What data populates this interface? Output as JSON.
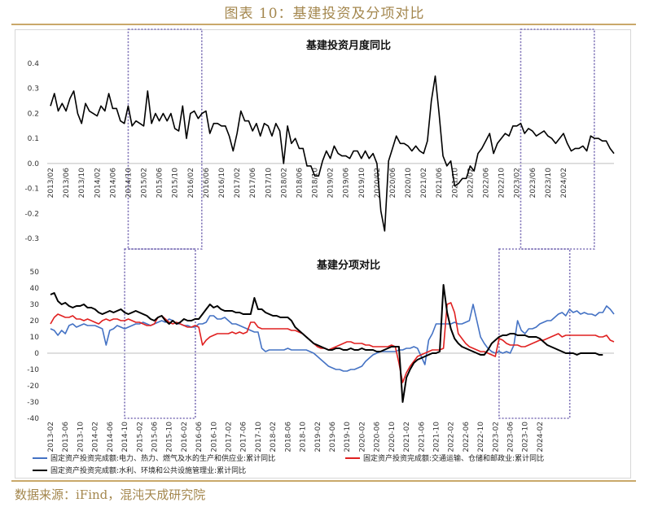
{
  "header": {
    "title": "图表 10：基建投资及分项对比"
  },
  "footer": {
    "source": "数据来源：iFind，混沌天成研究院"
  },
  "colors": {
    "black": "#000000",
    "blue": "#4472c4",
    "red": "#e02020",
    "highlight": "#7b6fb5",
    "gold": "#a4874e"
  },
  "chart_data": [
    {
      "type": "line",
      "title": "基建投资月度同比",
      "ylim": [
        -0.3,
        0.4
      ],
      "yticks": [
        "0.4",
        "0.3",
        "0.2",
        "0.1",
        "0.0",
        "-0.1",
        "-0.2",
        "-0.3"
      ],
      "xticks": [
        "2013/02",
        "2013/06",
        "2013/10",
        "2014/02",
        "2014/06",
        "2014/10",
        "2015/02",
        "2015/06",
        "2015/10",
        "2016/02",
        "2016/06",
        "2016/10",
        "2017/02",
        "2017/06",
        "2017/10",
        "2018/02",
        "2018/06",
        "2018/10",
        "2019/02",
        "2019/06",
        "2019/10",
        "2020/02",
        "2020/06",
        "2020/10",
        "2021/02",
        "2021/06",
        "2021/10",
        "2022/02",
        "2022/06",
        "2022/10",
        "2023/02",
        "2023/06",
        "2023/10",
        "2024/02"
      ],
      "series": [
        {
          "name": "基建投资月度同比",
          "values": [
            0.23,
            0.28,
            0.21,
            0.24,
            0.21,
            0.26,
            0.29,
            0.2,
            0.16,
            0.24,
            0.21,
            0.2,
            0.19,
            0.23,
            0.21,
            0.28,
            0.22,
            0.22,
            0.17,
            0.16,
            0.23,
            0.15,
            0.17,
            0.16,
            0.15,
            0.29,
            0.16,
            0.2,
            0.17,
            0.2,
            0.17,
            0.2,
            0.14,
            0.13,
            0.23,
            0.1,
            0.2,
            0.21,
            0.18,
            0.2,
            0.21,
            0.12,
            0.16,
            0.16,
            0.15,
            0.15,
            0.11,
            0.05,
            0.12,
            0.21,
            0.17,
            0.17,
            0.13,
            0.16,
            0.11,
            0.16,
            0.15,
            0.11,
            0.16,
            0.13,
            0.0,
            0.15,
            0.08,
            0.1,
            0.06,
            0.06,
            -0.01,
            -0.01,
            -0.05,
            -0.05,
            0.01,
            0.05,
            0.02,
            0.07,
            0.04,
            0.03,
            0.03,
            0.02,
            0.05,
            0.05,
            0.02,
            0.05,
            0.02,
            0.04,
            0.0,
            -0.19,
            -0.27,
            0.01,
            0.06,
            0.11,
            0.08,
            0.08,
            0.07,
            0.05,
            0.07,
            0.05,
            0.04,
            0.09,
            0.25,
            0.35,
            0.2,
            0.03,
            -0.01,
            0.01,
            -0.09,
            -0.08,
            -0.06,
            -0.06,
            -0.01,
            -0.03,
            0.04,
            0.06,
            0.09,
            0.12,
            0.04,
            0.08,
            0.1,
            0.12,
            0.11,
            0.15,
            0.15,
            0.16,
            0.12,
            0.14,
            0.13,
            0.11,
            0.12,
            0.13,
            0.11,
            0.1,
            0.08,
            0.1,
            0.12,
            0.08,
            0.05,
            0.06,
            0.06,
            0.07,
            0.05,
            0.11,
            0.1,
            0.1,
            0.09,
            0.09,
            0.06,
            0.04
          ]
        }
      ],
      "highlight_periods": [
        [
          "2014/10",
          "2016/02"
        ],
        [
          "2023/03",
          "2024/07"
        ]
      ]
    },
    {
      "type": "line",
      "title": "基建分项对比",
      "ylim": [
        -40,
        50
      ],
      "yticks": [
        "50",
        "40",
        "30",
        "20",
        "10",
        "0",
        "-10",
        "-20",
        "-30",
        "-40"
      ],
      "xticks": [
        "2013-02",
        "2013-06",
        "2013-10",
        "2014-02",
        "2014-06",
        "2014-10",
        "2015-02",
        "2015-06",
        "2015-10",
        "2016-02",
        "2016-06",
        "2016-10",
        "2017-02",
        "2017-06",
        "2017-10",
        "2018-02",
        "2018-06",
        "2018-10",
        "2019-02",
        "2019-06",
        "2019-10",
        "2020-02",
        "2020-06",
        "2020-10",
        "2021-02",
        "2021-06",
        "2021-10",
        "2022-02",
        "2022-06",
        "2022-10",
        "2023-02",
        "2023-06",
        "2023-10",
        "2024-02"
      ],
      "series": [
        {
          "name": "固定资产投资完成额:电力、热力、燃气及水的生产和供应业:累计同比",
          "values": [
            15,
            14,
            11,
            14,
            12,
            17,
            18,
            16,
            17,
            18,
            17,
            17,
            17,
            16,
            15,
            5,
            14,
            15,
            17,
            16,
            15,
            16,
            17,
            18,
            18,
            19,
            18,
            17,
            18,
            19,
            20,
            19,
            21,
            20,
            18,
            18,
            17,
            17,
            16,
            16,
            18,
            18,
            19,
            23,
            23,
            21,
            21,
            22,
            20,
            18,
            18,
            17,
            16,
            15,
            14,
            13,
            13,
            3,
            1,
            2,
            2,
            2,
            2,
            2,
            3,
            2,
            2,
            2,
            2,
            2,
            1,
            0,
            -2,
            -4,
            -6,
            -8,
            -9,
            -10,
            -10,
            -11,
            -11,
            -10,
            -10,
            -9,
            -8,
            -5,
            -3,
            -1,
            0,
            1,
            1,
            1,
            1,
            1,
            2,
            2,
            3,
            3,
            4,
            3,
            -2,
            -7,
            8,
            12,
            18,
            18,
            18,
            18,
            18,
            19,
            18,
            18,
            19,
            20,
            30,
            20,
            10,
            6,
            3,
            1,
            0,
            1,
            0,
            1,
            0,
            5,
            20,
            14,
            12,
            15,
            15,
            16,
            18,
            19,
            20,
            20,
            22,
            24,
            25,
            23,
            27,
            25,
            26,
            24,
            25,
            24,
            24,
            23,
            25,
            25,
            29,
            27,
            24
          ]
        },
        {
          "name": "固定资产投资完成额:交通运输、仓储和邮政业:累计同比",
          "values": [
            18,
            22,
            24,
            23,
            22,
            22,
            23,
            21,
            21,
            20,
            21,
            20,
            19,
            18,
            20,
            21,
            20,
            21,
            21,
            20,
            20,
            21,
            20,
            19,
            19,
            18,
            17,
            17,
            18,
            22,
            23,
            21,
            19,
            18,
            19,
            18,
            17,
            16,
            16,
            17,
            16,
            5,
            8,
            10,
            11,
            12,
            12,
            12,
            12,
            13,
            12,
            13,
            12,
            13,
            19,
            19,
            16,
            15,
            15,
            15,
            15,
            15,
            15,
            15,
            15,
            14,
            14,
            13,
            12,
            10,
            8,
            6,
            4,
            3,
            3,
            2,
            3,
            4,
            5,
            6,
            7,
            7,
            6,
            6,
            6,
            5,
            5,
            4,
            4,
            4,
            4,
            4,
            5,
            4,
            -6,
            -18,
            -12,
            -8,
            -5,
            -2,
            -1,
            0,
            1,
            2,
            2,
            2,
            3,
            30,
            31,
            25,
            12,
            9,
            6,
            4,
            3,
            2,
            1,
            1,
            0,
            -1,
            -2,
            9,
            8,
            6,
            5,
            5,
            5,
            4,
            4,
            5,
            6,
            7,
            8,
            8,
            9,
            10,
            11,
            12,
            10,
            11,
            11,
            11,
            11,
            11,
            11,
            11,
            11,
            11,
            10,
            10,
            11,
            8,
            7
          ]
        },
        {
          "name": "固定资产投资完成额:水利、环境和公共设施管理业:累计同比",
          "values": [
            36,
            37,
            32,
            30,
            31,
            29,
            28,
            29,
            29,
            30,
            28,
            28,
            27,
            25,
            24,
            25,
            26,
            25,
            26,
            27,
            25,
            24,
            25,
            26,
            25,
            24,
            23,
            21,
            20,
            22,
            23,
            20,
            18,
            20,
            18,
            19,
            21,
            20,
            20,
            21,
            21,
            24,
            27,
            30,
            28,
            29,
            27,
            26,
            26,
            26,
            25,
            25,
            24,
            24,
            24,
            34,
            27,
            27,
            25,
            24,
            23,
            23,
            22,
            22,
            22,
            20,
            16,
            14,
            12,
            10,
            8,
            6,
            5,
            4,
            3,
            2,
            2,
            3,
            3,
            2,
            2,
            3,
            2,
            2,
            3,
            2,
            2,
            2,
            1,
            1,
            2,
            3,
            4,
            4,
            4,
            -30,
            -15,
            -10,
            -6,
            -4,
            -3,
            -2,
            -1,
            0,
            0,
            1,
            42,
            25,
            15,
            9,
            6,
            4,
            3,
            2,
            1,
            0,
            -1,
            -1,
            2,
            6,
            8,
            10,
            11,
            11,
            12,
            12,
            11,
            11,
            11,
            10,
            10,
            10,
            9,
            7,
            5,
            4,
            3,
            2,
            1,
            0,
            0,
            0,
            -1,
            0,
            0,
            0,
            0,
            0,
            -1,
            -1
          ]
        }
      ],
      "highlight_periods": [
        [
          "2014/10",
          "2016/02"
        ],
        [
          "2023/03",
          "2024/07"
        ]
      ]
    }
  ]
}
